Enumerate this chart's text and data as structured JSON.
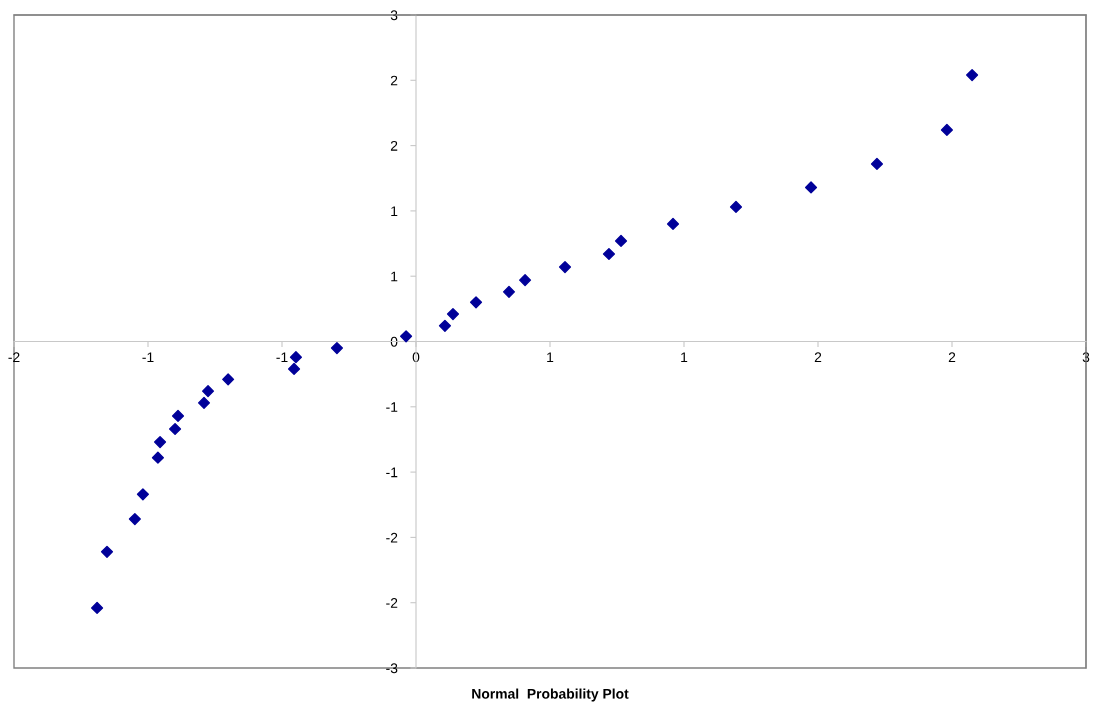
{
  "chart_data": {
    "type": "scatter",
    "title": "Normal  Probability Plot",
    "x": [
      -1.19,
      -1.153,
      -1.049,
      -1.019,
      -0.963,
      -0.955,
      -0.899,
      -0.888,
      -0.791,
      -0.776,
      -0.701,
      -0.455,
      -0.448,
      -0.295,
      -0.037,
      0.108,
      0.138,
      0.224,
      0.347,
      0.407,
      0.556,
      0.72,
      0.765,
      0.959,
      1.194,
      1.474,
      1.72,
      1.981,
      2.075
    ],
    "series": [
      {
        "color": "#000099",
        "values": [
          -2.04,
          -1.61,
          -1.36,
          -1.17,
          -0.89,
          -0.77,
          -0.67,
          -0.57,
          -0.47,
          -0.38,
          -0.29,
          -0.21,
          -0.12,
          -0.05,
          0.04,
          0.12,
          0.21,
          0.3,
          0.38,
          0.47,
          0.57,
          0.67,
          0.77,
          0.9,
          1.03,
          1.18,
          1.36,
          1.62,
          2.04
        ]
      }
    ],
    "xlim": [
      -1.5,
      2.5
    ],
    "xticks": [
      {
        "value": -1.5,
        "label": "-2"
      },
      {
        "value": -1,
        "label": "-1"
      },
      {
        "value": -0.5,
        "label": "-1"
      },
      {
        "value": 0,
        "label": "0"
      },
      {
        "value": 0.5,
        "label": "1"
      },
      {
        "value": 1,
        "label": "1"
      },
      {
        "value": 1.5,
        "label": "2"
      },
      {
        "value": 2,
        "label": "2"
      },
      {
        "value": 2.5,
        "label": "3"
      }
    ],
    "ylim": [
      -2.5,
      2.5
    ],
    "yticks": [
      {
        "value": -2.5,
        "label": "-3"
      },
      {
        "value": -2,
        "label": "-2"
      },
      {
        "value": -1.5,
        "label": "-2"
      },
      {
        "value": -1,
        "label": "-1"
      },
      {
        "value": -0.5,
        "label": "-1"
      },
      {
        "value": 0,
        "label": "0"
      },
      {
        "value": 0.5,
        "label": "1"
      },
      {
        "value": 1,
        "label": "1"
      },
      {
        "value": 1.5,
        "label": "2"
      },
      {
        "value": 2,
        "label": "2"
      },
      {
        "value": 2.5,
        "label": "3"
      }
    ],
    "marker": "diamond",
    "grid": false,
    "legend": false
  }
}
